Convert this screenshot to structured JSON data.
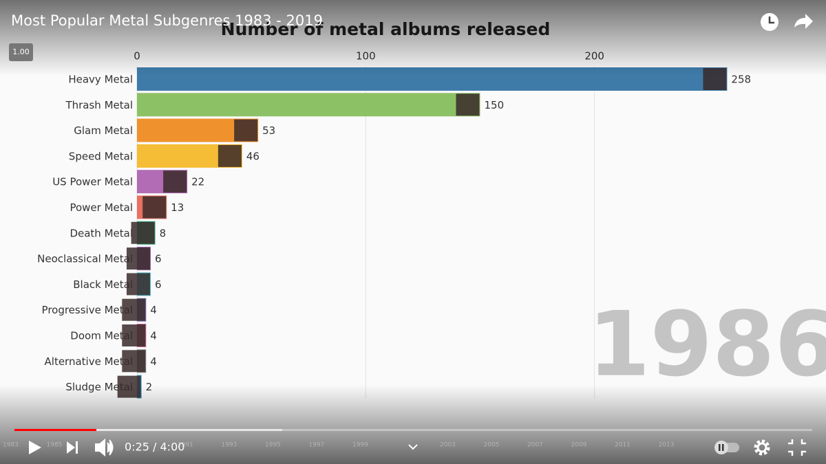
{
  "player": {
    "title": "Most Popular Metal Subgenres 1983 - 2019",
    "speed": "1.00",
    "time": "0:25 / 4:00",
    "timeline_labels": [
      "1983",
      "1985",
      "1991",
      "1993",
      "1995",
      "1997",
      "1999",
      "2003",
      "2005",
      "2007",
      "2009",
      "2011",
      "2013"
    ]
  },
  "chart_data": {
    "type": "bar",
    "orientation": "horizontal",
    "title": "Number of metal albums released",
    "period": "1986",
    "categories": [
      "Heavy Metal",
      "Thrash Metal",
      "Glam Metal",
      "Speed Metal",
      "US Power Metal",
      "Power Metal",
      "Death Metal",
      "Neoclassical Metal",
      "Black Metal",
      "Progressive Metal",
      "Doom Metal",
      "Alternative Metal",
      "Sludge Metal"
    ],
    "values": [
      258,
      150,
      53,
      46,
      22,
      13,
      8,
      6,
      6,
      4,
      4,
      4,
      2
    ],
    "colors": [
      "#3f7ba9",
      "#8dc165",
      "#ef922e",
      "#f5bd35",
      "#b26cb5",
      "#e8715f",
      "#3ba67b",
      "#8b5d9f",
      "#4cb9c7",
      "#7b6bab",
      "#c1618b",
      "#8a8a8a",
      "#3c9ed5"
    ],
    "xlim": [
      0,
      300
    ],
    "xticks": [
      0,
      100,
      200
    ],
    "grid": true
  }
}
